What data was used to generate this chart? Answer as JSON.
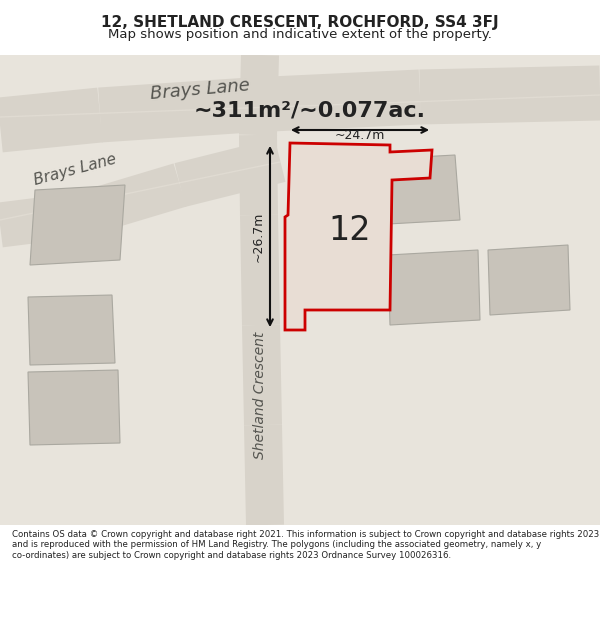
{
  "title_line1": "12, SHETLAND CRESCENT, ROCHFORD, SS4 3FJ",
  "title_line2": "Map shows position and indicative extent of the property.",
  "area_text": "~311m²/~0.077ac.",
  "number_label": "12",
  "dim_horizontal": "~24.7m",
  "dim_vertical": "~26.7m",
  "road_label_1": "Brays Lane",
  "road_label_2": "Brays Lane",
  "road_label_3": "Shetland Crescent",
  "footer": "Contains OS data © Crown copyright and database right 2021. This information is subject to Crown copyright and database rights 2023 and is reproduced with the permission of HM Land Registry. The polygons (including the associated geometry, namely x, y co-ordinates) are subject to Crown copyright and database rights 2023 Ordnance Survey 100026316.",
  "bg_color": "#f0ede8",
  "map_bg": "#e8e4dc",
  "road_color": "#d4cfc6",
  "property_fill": "#e8ddd0",
  "property_edge": "#cc0000",
  "neighbor_fill": "#c8c3ba",
  "neighbor_edge": "#999990",
  "road_line_color": "#f5f0e8",
  "title_bg": "#ffffff",
  "footer_bg": "#ffffff",
  "dim_line_color": "#111111",
  "text_color": "#222222",
  "road_text_color": "#555550"
}
